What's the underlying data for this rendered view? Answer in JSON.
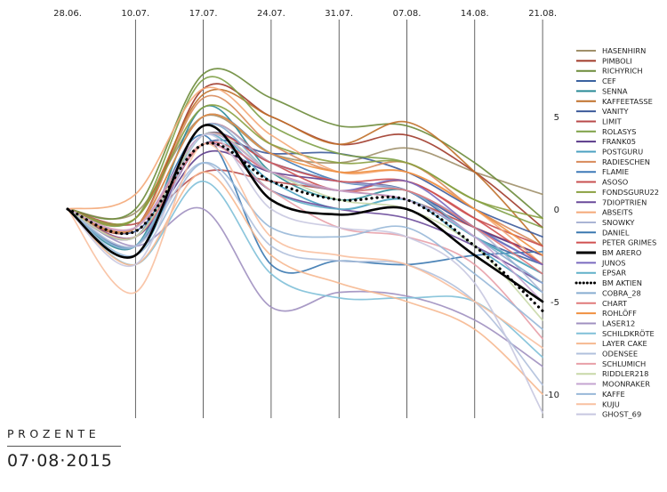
{
  "colors": {
    "background": "#ffffff",
    "gridline": "#222222",
    "benchmark": "#000000"
  },
  "caption": {
    "unit_label": "PROZENTE",
    "date_label": "07·08·2015"
  },
  "chart_data": {
    "type": "line",
    "title": "",
    "xlabel": "",
    "ylabel": "PROZENTE",
    "x_labels": [
      "28.06.",
      "10.07.",
      "17.07.",
      "24.07.",
      "31.07.",
      "07.08.",
      "14.08.",
      "21.08."
    ],
    "ylim": [
      -11,
      10
    ],
    "y_ticks": [
      5,
      0,
      -5,
      -10
    ],
    "grid": true,
    "legend_position": "right",
    "series": [
      {
        "name": "HASENHIRN",
        "color": "#a0906a",
        "values": [
          0,
          -0.2,
          5,
          3,
          2.5,
          3.3,
          2,
          0.8
        ]
      },
      {
        "name": "PIMBOLI",
        "color": "#a03a2a",
        "values": [
          0,
          -1,
          6.5,
          5,
          3.5,
          4,
          2,
          -1
        ]
      },
      {
        "name": "RICHYRICH",
        "color": "#6c8b3a",
        "values": [
          0,
          0,
          7.3,
          6,
          4.5,
          4.5,
          2.5,
          -0.5
        ]
      },
      {
        "name": "CEF",
        "color": "#3a62a0",
        "values": [
          0,
          -1.5,
          4,
          2.5,
          1.5,
          1,
          -1.5,
          -3
        ]
      },
      {
        "name": "SENNA",
        "color": "#2a8a96",
        "values": [
          0,
          -2,
          5.5,
          2,
          0.5,
          1,
          -1.5,
          -3.5
        ]
      },
      {
        "name": "KAFFEETASSE",
        "color": "#c0702a",
        "values": [
          0,
          -0.5,
          6.2,
          5,
          3.5,
          4.7,
          2,
          -2
        ]
      },
      {
        "name": "VANITY",
        "color": "#3c5a9a",
        "values": [
          0,
          -1.2,
          3.5,
          3,
          3,
          2,
          0,
          -1.5
        ]
      },
      {
        "name": "LIMIT",
        "color": "#b84a4a",
        "values": [
          0,
          -0.8,
          2,
          1.5,
          1,
          0.5,
          -1,
          -2.5
        ]
      },
      {
        "name": "ROLASYS",
        "color": "#7ea046",
        "values": [
          0,
          -0.5,
          7,
          4.5,
          3,
          2.5,
          0.5,
          -1
        ]
      },
      {
        "name": "FRANK05",
        "color": "#5a3a8a",
        "values": [
          0,
          -1.5,
          3,
          2,
          1.5,
          1,
          -1,
          -2.5
        ]
      },
      {
        "name": "POSTGURU",
        "color": "#4aa0c0",
        "values": [
          0,
          -2.5,
          4,
          1.5,
          0,
          0.5,
          -2,
          -4.5
        ]
      },
      {
        "name": "RADIESCHEN",
        "color": "#d88a5a",
        "values": [
          0,
          -1,
          6,
          3.5,
          2,
          2.5,
          0,
          -2
        ]
      },
      {
        "name": "FLAMIE",
        "color": "#3e7ab8",
        "values": [
          0,
          -1,
          5,
          3,
          1.5,
          1,
          -1,
          -3
        ]
      },
      {
        "name": "ASOSO",
        "color": "#c85050",
        "values": [
          0,
          -1.5,
          4.5,
          2.5,
          1,
          1.5,
          -0.5,
          -2
        ]
      },
      {
        "name": "FONDSGURU22",
        "color": "#8aa040",
        "values": [
          0,
          -0.5,
          5.5,
          3.5,
          2.5,
          2.5,
          0.5,
          -0.5
        ]
      },
      {
        "name": "7DIOPTRIEN",
        "color": "#6a4a9a",
        "values": [
          0,
          -2,
          3.5,
          1,
          0,
          -0.5,
          -2,
          -4
        ]
      },
      {
        "name": "ABSEITS",
        "color": "#f4a878",
        "values": [
          0,
          0.8,
          6.5,
          4,
          2,
          2,
          0,
          -3
        ]
      },
      {
        "name": "SNOWKY",
        "color": "#aab4d4",
        "values": [
          0,
          -1.5,
          4.5,
          2.5,
          1.5,
          1,
          -1,
          -4.5
        ]
      },
      {
        "name": "DANIEL",
        "color": "#3a78b0",
        "values": [
          0,
          -1.5,
          4,
          -3,
          -2.8,
          -3,
          -2.5,
          -2.3
        ]
      },
      {
        "name": "PETER GRIMES",
        "color": "#d05050",
        "values": [
          0,
          -1,
          4,
          2.5,
          1.5,
          1.5,
          -0.5,
          -3
        ]
      },
      {
        "name": "BM ARERO",
        "color": "#000000",
        "width": 2.6,
        "values": [
          0,
          -2.5,
          4.5,
          0.5,
          -0.3,
          0,
          -2.5,
          -5
        ]
      },
      {
        "name": "JUNOS",
        "color": "#7a6abf",
        "values": [
          0,
          -1.5,
          3.5,
          2,
          1,
          1.5,
          -1,
          -3
        ]
      },
      {
        "name": "EPSAR",
        "color": "#60b0c8",
        "values": [
          0,
          -2,
          4,
          1,
          0,
          0.5,
          -1.5,
          -3.5
        ]
      },
      {
        "name": "BM AKTIEN",
        "color": "#000000",
        "width": 2.6,
        "dash": "dots",
        "values": [
          0,
          -1.2,
          3.5,
          1.5,
          0.5,
          0.5,
          -2,
          -5.5
        ]
      },
      {
        "name": "COBRA_28",
        "color": "#88aed0",
        "values": [
          0,
          -2,
          4.5,
          2,
          1,
          1,
          -1.5,
          -4
        ]
      },
      {
        "name": "CHART",
        "color": "#e07a7a",
        "values": [
          0,
          -1.5,
          3.5,
          2,
          1,
          1,
          -1,
          -3.5
        ]
      },
      {
        "name": "ROHLÖFF",
        "color": "#f09040",
        "values": [
          0,
          -1,
          5,
          3,
          2,
          2,
          0,
          -2.5
        ]
      },
      {
        "name": "LASER12",
        "color": "#a090c0",
        "values": [
          0,
          -2,
          0,
          -5.3,
          -4.5,
          -4.7,
          -6,
          -8.5
        ]
      },
      {
        "name": "SCHILDKRÖTE",
        "color": "#80c0d8",
        "values": [
          0,
          -3,
          1.5,
          -3.5,
          -4.8,
          -4.8,
          -5,
          -8
        ]
      },
      {
        "name": "LAYER CAKE",
        "color": "#f6b890",
        "values": [
          0,
          -3,
          2,
          -2.5,
          -4,
          -5,
          -6.5,
          -10
        ]
      },
      {
        "name": "ODENSEE",
        "color": "#b0c0dc",
        "values": [
          0,
          -2,
          2.5,
          -2,
          -2.8,
          -3,
          -5,
          -9.5
        ]
      },
      {
        "name": "SCHLUMICH",
        "color": "#e8a0a8",
        "values": [
          0,
          -1,
          3.5,
          1,
          -1,
          -1.5,
          -3,
          -7
        ]
      },
      {
        "name": "RIDDLER218",
        "color": "#c8d8a8",
        "values": [
          0,
          -1.5,
          4,
          2,
          0.5,
          0,
          -2,
          -6
        ]
      },
      {
        "name": "MOONRAKER",
        "color": "#c4a4d0",
        "values": [
          0,
          -1,
          4,
          2,
          1,
          0.5,
          -1.5,
          -5
        ]
      },
      {
        "name": "KAFFE",
        "color": "#98b8d8",
        "values": [
          0,
          -2.5,
          2.5,
          -1,
          -1.5,
          -1,
          -3.5,
          -6.5
        ]
      },
      {
        "name": "KUJU",
        "color": "#f8c0a0",
        "values": [
          0,
          -4.5,
          3.5,
          -1.5,
          -2.5,
          -3,
          -5,
          -7.5
        ]
      },
      {
        "name": "GHOST_69",
        "color": "#c8c8e0",
        "values": [
          0,
          -3,
          4,
          0,
          -1,
          -1.5,
          -4,
          -11
        ]
      }
    ]
  }
}
